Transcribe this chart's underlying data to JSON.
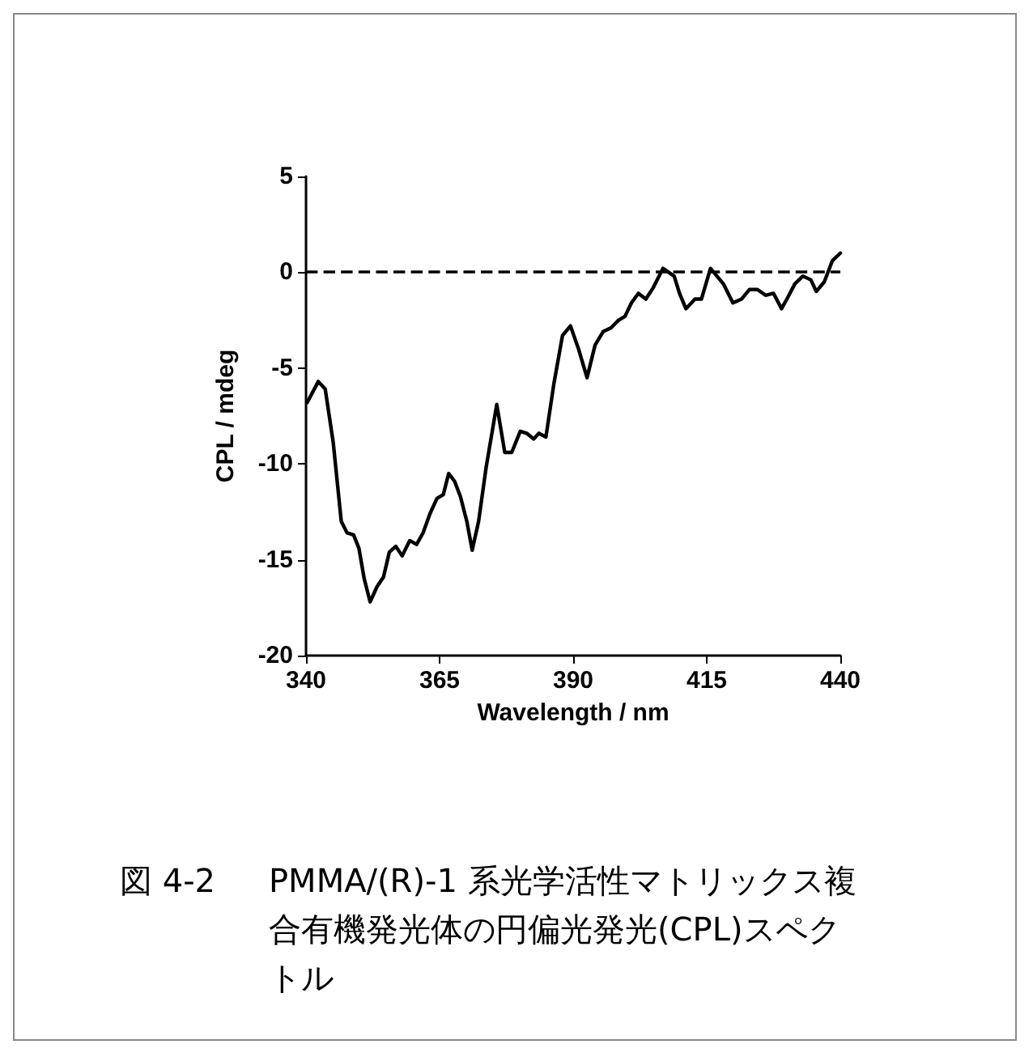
{
  "chart_data": {
    "type": "line",
    "xlabel": "Wavelength / nm",
    "ylabel": "CPL / mdeg",
    "x": [
      340.2,
      342.3,
      343.6,
      345.1,
      346.6,
      347.7,
      348.9,
      349.9,
      350.9,
      352.0,
      353.3,
      354.5,
      355.6,
      356.8,
      358.0,
      359.4,
      360.7,
      361.9,
      363.2,
      364.5,
      365.7,
      366.7,
      367.8,
      368.9,
      370.1,
      371.1,
      372.3,
      373.7,
      375.7,
      377.2,
      378.5,
      380.1,
      381.3,
      382.6,
      383.6,
      384.9,
      386.4,
      388.0,
      389.5,
      391.0,
      392.6,
      394.1,
      395.6,
      397.1,
      398.5,
      399.7,
      400.9,
      402.2,
      403.6,
      405.0,
      406.8,
      408.9,
      409.9,
      411.1,
      412.8,
      414.0,
      415.7,
      418.1,
      419.9,
      421.5,
      423.0,
      424.5,
      426.0,
      427.5,
      429.0,
      430.0,
      431.5,
      433.0,
      434.5,
      435.5,
      437.0,
      438.5,
      440.0
    ],
    "series": [
      {
        "color": "#000000",
        "values": [
          -6.8,
          -5.7,
          -6.1,
          -8.9,
          -13.0,
          -13.6,
          -13.7,
          -14.4,
          -16.0,
          -17.2,
          -16.4,
          -15.9,
          -14.6,
          -14.3,
          -14.8,
          -14.0,
          -14.2,
          -13.6,
          -12.6,
          -11.8,
          -11.6,
          -10.5,
          -10.9,
          -11.7,
          -13.0,
          -14.5,
          -13.0,
          -10.2,
          -6.9,
          -9.4,
          -9.4,
          -8.3,
          -8.4,
          -8.7,
          -8.4,
          -8.6,
          -5.8,
          -3.3,
          -2.8,
          -4.0,
          -5.5,
          -3.8,
          -3.1,
          -2.9,
          -2.5,
          -2.3,
          -1.6,
          -1.1,
          -1.4,
          -0.8,
          0.2,
          -0.2,
          -1.1,
          -1.9,
          -1.4,
          -1.4,
          0.2,
          -0.6,
          -1.6,
          -1.4,
          -0.9,
          -0.9,
          -1.2,
          -1.1,
          -1.9,
          -1.4,
          -0.6,
          -0.2,
          -0.4,
          -1.0,
          -0.5,
          0.6,
          1.0
        ]
      }
    ],
    "xlim": [
      340,
      440
    ],
    "xticks": [
      340,
      365,
      390,
      415,
      440
    ],
    "ylim": [
      -20,
      5
    ],
    "yticks": [
      -20,
      -15,
      -10,
      -5,
      0,
      5
    ],
    "grid": false,
    "marker": "none",
    "line_style": "solid",
    "ref_lines": [
      {
        "axis": "y",
        "value": 0,
        "line_style": "dashed",
        "color": "#000000"
      }
    ],
    "annotations": [
      "図 4-2　PMMA/(R)-1 系光学活性マトリックス複合有機発光体の円偏光発光(CPL)スペクトル"
    ]
  }
}
